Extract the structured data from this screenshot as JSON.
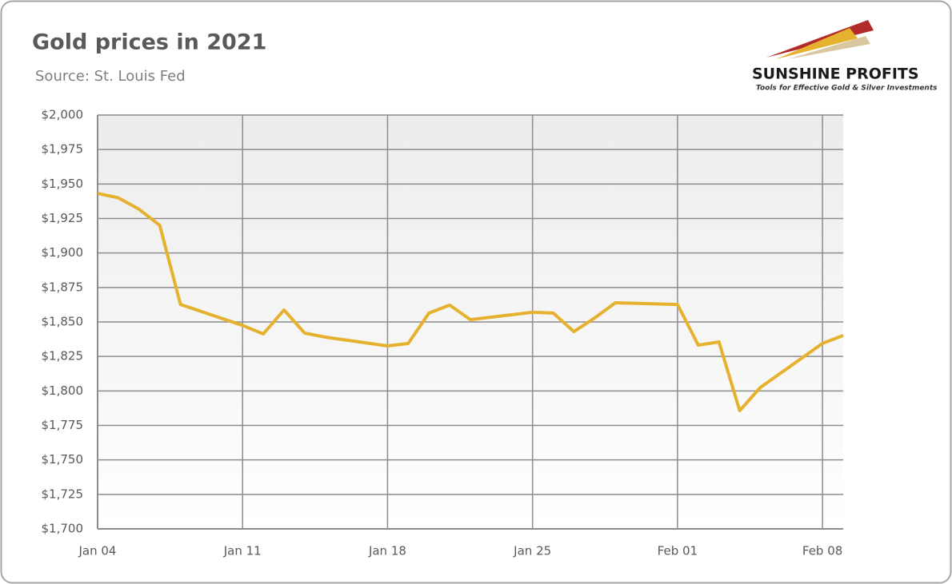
{
  "chart_data": {
    "type": "line",
    "title": "Gold prices in 2021",
    "subtitle": "Source: St. Louis Fed",
    "x": [
      "Jan 04",
      "Jan 05",
      "Jan 06",
      "Jan 07",
      "Jan 08",
      "Jan 11",
      "Jan 12",
      "Jan 13",
      "Jan 14",
      "Jan 15",
      "Jan 18",
      "Jan 19",
      "Jan 20",
      "Jan 21",
      "Jan 22",
      "Jan 25",
      "Jan 26",
      "Jan 27",
      "Jan 28",
      "Jan 29",
      "Feb 01",
      "Feb 02",
      "Feb 03",
      "Feb 04",
      "Feb 05",
      "Feb 08",
      "Feb 09"
    ],
    "series": [
      {
        "color": "#e6b12e",
        "values": [
          1943.2,
          1940,
          1931.7,
          1920,
          1862.7,
          1847.5,
          1841.3,
          1858.7,
          1841.9,
          1839,
          1832.6,
          1834.4,
          1856.4,
          1862.2,
          1851.7,
          1857,
          1856.4,
          1843,
          1852.9,
          1863.9,
          1862.7,
          1833.2,
          1835.5,
          1785.7,
          1802.5,
          1834.4,
          1840.2
        ]
      }
    ],
    "xlim": [
      "Jan 04",
      "Feb 09"
    ],
    "xticks": [
      "Jan 04",
      "Jan 11",
      "Jan 18",
      "Jan 25",
      "Feb 01",
      "Feb 08"
    ],
    "ylim": [
      1700,
      2000
    ],
    "yticks": [
      {
        "value": 1700,
        "label": "$1,700"
      },
      {
        "value": 1725,
        "label": "$1,725"
      },
      {
        "value": 1750,
        "label": "$1,750"
      },
      {
        "value": 1775,
        "label": "$1,775"
      },
      {
        "value": 1800,
        "label": "$1,800"
      },
      {
        "value": 1825,
        "label": "$1,825"
      },
      {
        "value": 1850,
        "label": "$1,850"
      },
      {
        "value": 1875,
        "label": "$1,875"
      },
      {
        "value": 1900,
        "label": "$1,900"
      },
      {
        "value": 1925,
        "label": "$1,925"
      },
      {
        "value": 1950,
        "label": "$1,950"
      },
      {
        "value": 1975,
        "label": "$1,975"
      },
      {
        "value": 2000,
        "label": "$2,000"
      }
    ],
    "grid": true
  },
  "logo": {
    "name": "SUNSHINE PROFITS",
    "tagline": "Tools for Effective Gold & Silver Investments"
  }
}
